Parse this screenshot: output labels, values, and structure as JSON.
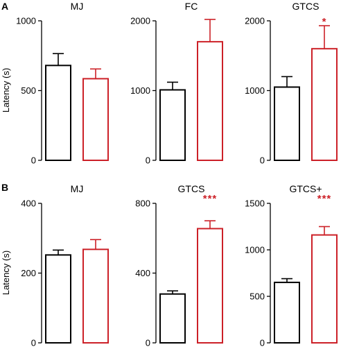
{
  "figure": {
    "rows": [
      {
        "letter": "A",
        "ylabel": "Latency (s)"
      },
      {
        "letter": "B",
        "ylabel": "Latency (s)"
      }
    ]
  },
  "colors": {
    "group1": "#000000",
    "group2": "#cc2027"
  },
  "chart_data": [
    {
      "type": "bar",
      "row": 0,
      "title": "MJ",
      "ylim": [
        0,
        1000
      ],
      "yticks": [
        "0",
        "500",
        "1000"
      ],
      "ytick_values": [
        0,
        500,
        1000
      ],
      "values": [
        680,
        585
      ],
      "errors": [
        85,
        70
      ],
      "annotation": ""
    },
    {
      "type": "bar",
      "row": 0,
      "title": "FC",
      "ylim": [
        0,
        2000
      ],
      "yticks": [
        "0",
        "1000",
        "2000"
      ],
      "ytick_values": [
        0,
        1000,
        2000
      ],
      "values": [
        1010,
        1700
      ],
      "errors": [
        110,
        320
      ],
      "annotation": ""
    },
    {
      "type": "bar",
      "row": 0,
      "title": "GTCS",
      "ylim": [
        0,
        2000
      ],
      "yticks": [
        "0",
        "1000",
        "2000"
      ],
      "ytick_values": [
        0,
        1000,
        2000
      ],
      "values": [
        1050,
        1600
      ],
      "errors": [
        150,
        330
      ],
      "annotation": "*"
    },
    {
      "type": "bar",
      "row": 1,
      "title": "MJ",
      "ylim": [
        0,
        400
      ],
      "yticks": [
        "0",
        "200",
        "400"
      ],
      "ytick_values": [
        0,
        200,
        400
      ],
      "values": [
        252,
        268
      ],
      "errors": [
        14,
        28
      ],
      "annotation": ""
    },
    {
      "type": "bar",
      "row": 1,
      "title": "GTCS",
      "ylim": [
        0,
        800
      ],
      "yticks": [
        "0",
        "400",
        "800"
      ],
      "ytick_values": [
        0,
        400,
        800
      ],
      "values": [
        280,
        655
      ],
      "errors": [
        18,
        45
      ],
      "annotation": "***"
    },
    {
      "type": "bar",
      "row": 1,
      "title": "GTCS+",
      "ylim": [
        0,
        1500
      ],
      "yticks": [
        "0",
        "500",
        "1000",
        "1500"
      ],
      "ytick_values": [
        0,
        500,
        1000,
        1500
      ],
      "values": [
        650,
        1160
      ],
      "errors": [
        40,
        90
      ],
      "annotation": "***"
    }
  ]
}
